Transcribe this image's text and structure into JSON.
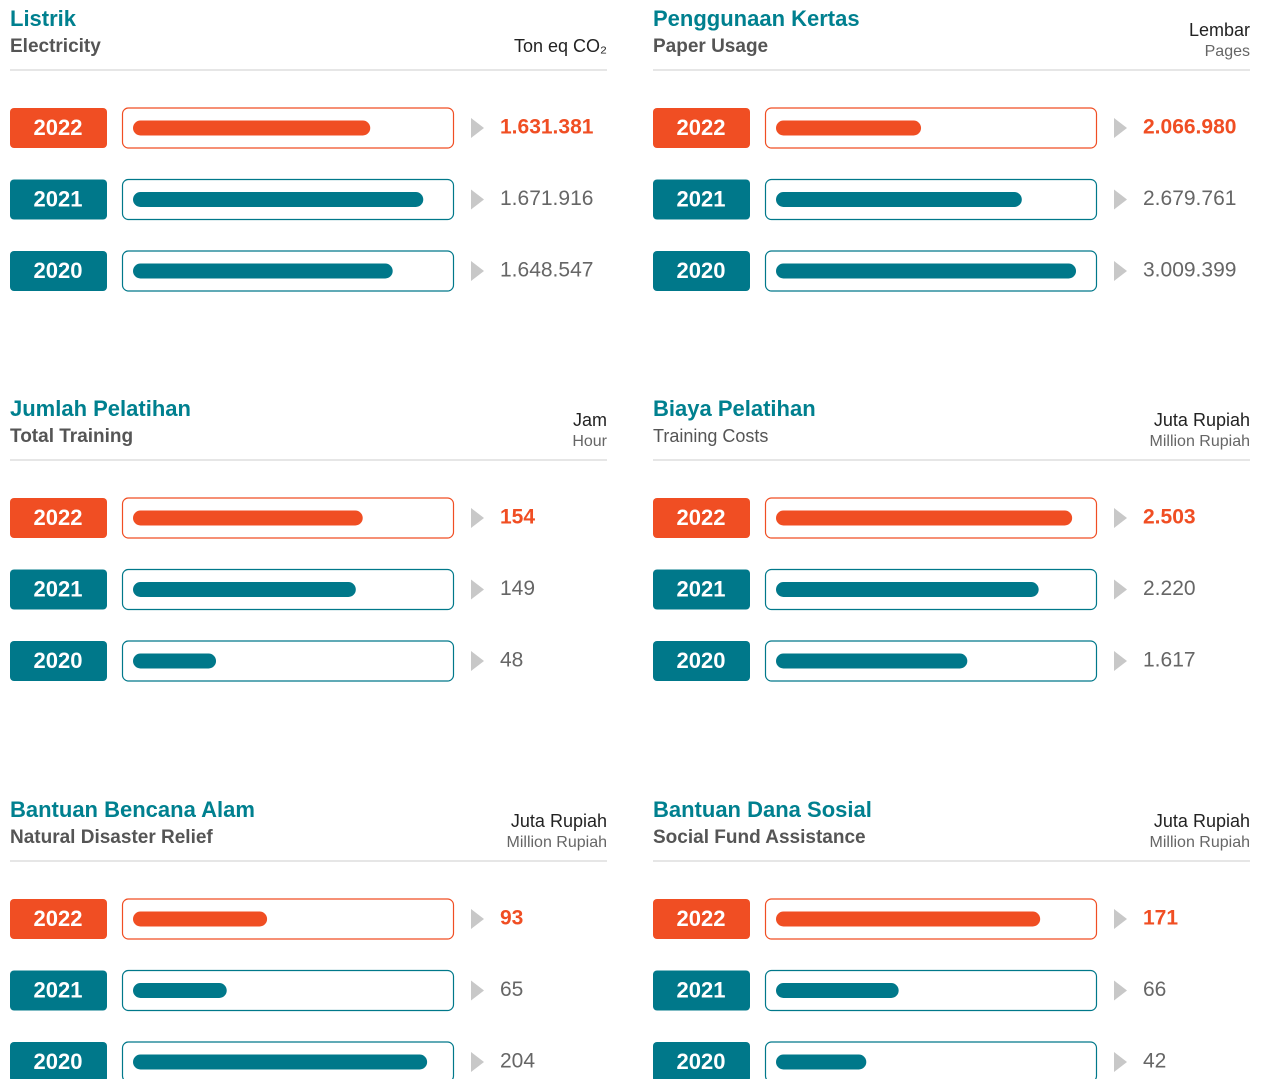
{
  "chart_data": [
    {
      "type": "bar",
      "title": "Listrik",
      "subtitle": "Electricity",
      "unit": "Ton eq CO₂",
      "categories": [
        "2022",
        "2021",
        "2020"
      ],
      "values": [
        1631381,
        1671916,
        1648547
      ],
      "value_labels": [
        "1.631.381",
        "1.671.916",
        "1.648.547"
      ],
      "xlim": [
        1450000,
        1687000
      ],
      "colors": [
        "#f04e23",
        "#00788a",
        "#00788a"
      ]
    },
    {
      "type": "bar",
      "title": "Penggunaan Kertas",
      "subtitle": "Paper Usage",
      "unit": "Lembar",
      "unit_en": "Pages",
      "categories": [
        "2022",
        "2021",
        "2020"
      ],
      "values": [
        2066980,
        2679761,
        3009399
      ],
      "value_labels": [
        "2.066.980",
        "2.679.761",
        "3.009.399"
      ],
      "xlim": [
        1185000,
        3070000
      ],
      "colors": [
        "#f04e23",
        "#00788a",
        "#00788a"
      ]
    },
    {
      "type": "bar",
      "title": "Jumlah Pelatihan",
      "subtitle": "Total Training",
      "unit": "Jam",
      "unit_en": "Hour",
      "categories": [
        "2022",
        "2021",
        "2020"
      ],
      "values": [
        154,
        149,
        48
      ],
      "xlim": [
        -12,
        212
      ],
      "colors": [
        "#f04e23",
        "#00788a",
        "#00788a"
      ]
    },
    {
      "type": "bar",
      "title": "Biaya Pelatihan",
      "subtitle": "Training Costs",
      "unit": "Juta Rupiah",
      "unit_en": "Million Rupiah",
      "categories": [
        "2022",
        "2021",
        "2020"
      ],
      "values": [
        2503,
        2220,
        1617
      ],
      "value_labels": [
        "2.503",
        "2.220",
        "1.617"
      ],
      "xlim": [
        0,
        2620
      ],
      "colors": [
        "#f04e23",
        "#00788a",
        "#00788a"
      ]
    },
    {
      "type": "bar",
      "title": "Bantuan Bencana Alam",
      "subtitle": "Natural Disaster Relief",
      "unit": "Juta Rupiah",
      "unit_en": "Million Rupiah",
      "categories": [
        "2022",
        "2021",
        "2020"
      ],
      "values": [
        93,
        65,
        204
      ],
      "xlim": [
        0,
        215
      ],
      "colors": [
        "#f04e23",
        "#00788a",
        "#00788a"
      ]
    },
    {
      "type": "bar",
      "title": "Bantuan Dana Sosial",
      "subtitle": "Social Fund Assistance",
      "unit": "Juta Rupiah",
      "unit_en": "Million Rupiah",
      "categories": [
        "2022",
        "2021",
        "2020"
      ],
      "values": [
        171,
        66,
        42
      ],
      "xlim": [
        -25,
        205
      ],
      "colors": [
        "#f04e23",
        "#00788a",
        "#00788a"
      ]
    }
  ]
}
